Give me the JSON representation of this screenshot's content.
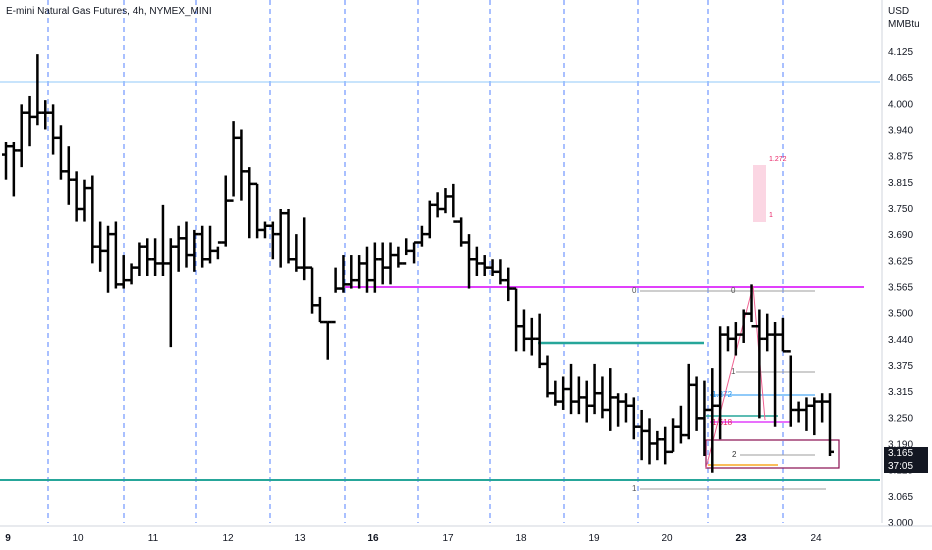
{
  "header": {
    "title": "E-mini Natural Gas Futures, 4h, NYMEX_MINI",
    "currency": "USD",
    "unit": "MMBtu"
  },
  "last_price": {
    "value": "3.165",
    "countdown": "37:05"
  },
  "colors": {
    "bars": "#000000",
    "grid_dash": "#2962ff",
    "h_line_blue": "#90caf9",
    "teal": "#26a69a",
    "magenta": "#e040fb",
    "fib_pink": "#e91e63",
    "fib_blue": "#2196f3",
    "fib_gray": "#9e9e9e",
    "box_border": "#880e4f",
    "axis_tag": "#131722"
  },
  "chart_data": {
    "type": "ohlc",
    "title": "E-mini Natural Gas Futures, 4h, NYMEX_MINI",
    "ylabel": "USD MMBtu",
    "ylim": [
      2.985,
      4.225
    ],
    "yticks": [
      "4.125",
      "4.065",
      "4.000",
      "3.940",
      "3.875",
      "3.815",
      "3.750",
      "3.690",
      "3.625",
      "3.565",
      "3.500",
      "3.440",
      "3.375",
      "3.315",
      "3.250",
      "3.190",
      "3.125",
      "3.065",
      "3.000"
    ],
    "xticks": [
      {
        "label": "9",
        "bold": true
      },
      {
        "label": "10",
        "bold": false
      },
      {
        "label": "11",
        "bold": false
      },
      {
        "label": "12",
        "bold": false
      },
      {
        "label": "13",
        "bold": false
      },
      {
        "label": "16",
        "bold": true
      },
      {
        "label": "17",
        "bold": false
      },
      {
        "label": "18",
        "bold": false
      },
      {
        "label": "19",
        "bold": false
      },
      {
        "label": "20",
        "bold": false
      },
      {
        "label": "23",
        "bold": true
      },
      {
        "label": "24",
        "bold": false
      }
    ],
    "bars": [
      [
        3.88,
        3.91,
        3.82,
        3.9
      ],
      [
        3.9,
        3.91,
        3.78,
        3.89
      ],
      [
        3.89,
        4.0,
        3.85,
        3.98
      ],
      [
        3.98,
        4.02,
        3.9,
        3.97
      ],
      [
        3.97,
        4.12,
        3.95,
        3.98
      ],
      [
        3.98,
        4.01,
        3.94,
        3.98
      ],
      [
        3.98,
        4.0,
        3.88,
        3.92
      ],
      [
        3.92,
        3.95,
        3.82,
        3.84
      ],
      [
        3.84,
        3.9,
        3.76,
        3.82
      ],
      [
        3.82,
        3.84,
        3.72,
        3.75
      ],
      [
        3.75,
        3.82,
        3.72,
        3.8
      ],
      [
        3.8,
        3.83,
        3.62,
        3.66
      ],
      [
        3.66,
        3.72,
        3.6,
        3.65
      ],
      [
        3.65,
        3.71,
        3.55,
        3.69
      ],
      [
        3.69,
        3.72,
        3.56,
        3.57
      ],
      [
        3.57,
        3.64,
        3.56,
        3.58
      ],
      [
        3.58,
        3.62,
        3.57,
        3.61
      ],
      [
        3.61,
        3.67,
        3.59,
        3.66
      ],
      [
        3.66,
        3.68,
        3.59,
        3.63
      ],
      [
        3.63,
        3.68,
        3.59,
        3.62
      ],
      [
        3.62,
        3.76,
        3.59,
        3.62
      ],
      [
        3.62,
        3.68,
        3.42,
        3.66
      ],
      [
        3.66,
        3.71,
        3.6,
        3.68
      ],
      [
        3.68,
        3.72,
        3.61,
        3.64
      ],
      [
        3.64,
        3.7,
        3.6,
        3.69
      ],
      [
        3.69,
        3.71,
        3.61,
        3.63
      ],
      [
        3.63,
        3.71,
        3.62,
        3.65
      ],
      [
        3.65,
        3.66,
        3.63,
        3.67
      ],
      [
        3.67,
        3.83,
        3.66,
        3.77
      ],
      [
        3.77,
        3.96,
        3.78,
        3.92
      ],
      [
        3.92,
        3.94,
        3.77,
        3.84
      ],
      [
        3.84,
        3.85,
        3.68,
        3.81
      ],
      [
        3.81,
        3.81,
        3.68,
        3.7
      ],
      [
        3.7,
        3.72,
        3.68,
        3.71
      ],
      [
        3.71,
        3.72,
        3.63,
        3.69
      ],
      [
        3.69,
        3.75,
        3.61,
        3.74
      ],
      [
        3.74,
        3.75,
        3.62,
        3.63
      ],
      [
        3.63,
        3.69,
        3.6,
        3.61
      ],
      [
        3.61,
        3.73,
        3.58,
        3.61
      ],
      [
        3.61,
        3.61,
        3.5,
        3.52
      ],
      [
        3.52,
        3.54,
        3.48,
        3.48
      ],
      [
        3.48,
        3.48,
        3.39,
        3.48
      ],
      [
        3.48,
        3.61,
        3.55,
        3.56
      ],
      [
        3.56,
        3.64,
        3.55,
        3.57
      ],
      [
        3.57,
        3.64,
        3.56,
        3.58
      ],
      [
        3.58,
        3.64,
        3.56,
        3.62
      ],
      [
        3.62,
        3.66,
        3.55,
        3.58
      ],
      [
        3.58,
        3.67,
        3.55,
        3.63
      ],
      [
        3.63,
        3.67,
        3.57,
        3.61
      ],
      [
        3.61,
        3.67,
        3.57,
        3.64
      ],
      [
        3.64,
        3.66,
        3.61,
        3.62
      ],
      [
        3.62,
        3.68,
        3.64,
        3.65
      ],
      [
        3.65,
        3.67,
        3.62,
        3.67
      ],
      [
        3.67,
        3.71,
        3.66,
        3.69
      ],
      [
        3.69,
        3.77,
        3.68,
        3.76
      ],
      [
        3.76,
        3.79,
        3.73,
        3.75
      ],
      [
        3.75,
        3.8,
        3.74,
        3.78
      ],
      [
        3.78,
        3.81,
        3.73,
        3.72
      ],
      [
        3.72,
        3.73,
        3.66,
        3.67
      ],
      [
        3.67,
        3.69,
        3.56,
        3.63
      ],
      [
        3.63,
        3.66,
        3.59,
        3.62
      ],
      [
        3.62,
        3.64,
        3.59,
        3.61
      ],
      [
        3.61,
        3.63,
        3.59,
        3.6
      ],
      [
        3.6,
        3.63,
        3.57,
        3.58
      ],
      [
        3.58,
        3.61,
        3.53,
        3.56
      ],
      [
        3.56,
        3.56,
        3.41,
        3.47
      ],
      [
        3.47,
        3.51,
        3.41,
        3.44
      ],
      [
        3.44,
        3.49,
        3.4,
        3.44
      ],
      [
        3.44,
        3.5,
        3.37,
        3.38
      ],
      [
        3.38,
        3.4,
        3.3,
        3.31
      ],
      [
        3.31,
        3.34,
        3.28,
        3.29
      ],
      [
        3.29,
        3.35,
        3.27,
        3.32
      ],
      [
        3.32,
        3.38,
        3.26,
        3.29
      ],
      [
        3.29,
        3.35,
        3.26,
        3.3
      ],
      [
        3.3,
        3.34,
        3.24,
        3.28
      ],
      [
        3.28,
        3.38,
        3.26,
        3.31
      ],
      [
        3.31,
        3.35,
        3.25,
        3.27
      ],
      [
        3.27,
        3.37,
        3.22,
        3.3
      ],
      [
        3.3,
        3.31,
        3.23,
        3.29
      ],
      [
        3.29,
        3.31,
        3.24,
        3.28
      ],
      [
        3.28,
        3.3,
        3.2,
        3.23
      ],
      [
        3.23,
        3.27,
        3.15,
        3.22
      ],
      [
        3.22,
        3.25,
        3.14,
        3.19
      ],
      [
        3.19,
        3.22,
        3.15,
        3.2
      ],
      [
        3.2,
        3.23,
        3.14,
        3.17
      ],
      [
        3.17,
        3.25,
        3.17,
        3.23
      ],
      [
        3.23,
        3.28,
        3.19,
        3.21
      ],
      [
        3.21,
        3.38,
        3.2,
        3.33
      ],
      [
        3.33,
        3.35,
        3.22,
        3.25
      ],
      [
        3.25,
        3.34,
        3.16,
        3.27
      ],
      [
        3.27,
        3.37,
        3.12,
        3.28
      ],
      [
        3.28,
        3.47,
        3.2,
        3.45
      ],
      [
        3.45,
        3.47,
        3.41,
        3.44
      ],
      [
        3.44,
        3.48,
        3.4,
        3.45
      ],
      [
        3.45,
        3.51,
        3.43,
        3.5
      ],
      [
        3.5,
        3.57,
        3.48,
        3.47
      ],
      [
        3.47,
        3.51,
        3.25,
        3.44
      ],
      [
        3.44,
        3.5,
        3.41,
        3.45
      ],
      [
        3.45,
        3.48,
        3.23,
        3.45
      ],
      [
        3.45,
        3.49,
        3.41,
        3.41
      ],
      [
        3.41,
        3.4,
        3.23,
        3.27
      ],
      [
        3.27,
        3.29,
        3.24,
        3.27
      ],
      [
        3.27,
        3.3,
        3.22,
        3.28
      ],
      [
        3.28,
        3.3,
        3.21,
        3.29
      ],
      [
        3.29,
        3.31,
        3.24,
        3.29
      ],
      [
        3.29,
        3.31,
        3.16,
        3.17
      ]
    ]
  },
  "annotations": {
    "fib_upper": [
      "1.272",
      "1"
    ],
    "fib_main": [
      "0",
      "0",
      "1",
      "1.272",
      "1.618",
      "2",
      "1"
    ]
  }
}
